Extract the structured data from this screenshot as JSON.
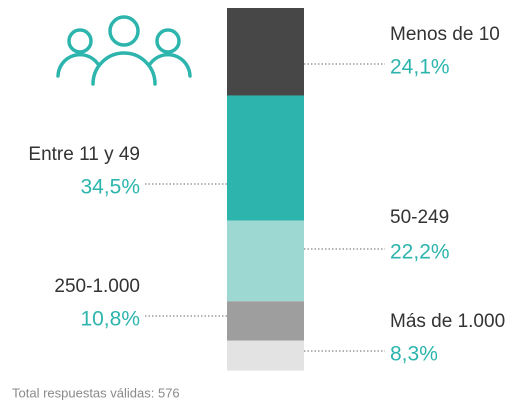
{
  "chart_data": {
    "type": "stacked-column",
    "categories": [
      "Menos de 10",
      "Entre 11 y 49",
      "50-249",
      "250-1.000",
      "Más de 1.000"
    ],
    "values": [
      24.1,
      34.5,
      22.2,
      10.8,
      8.3
    ],
    "value_labels": [
      "24,1%",
      "34,5%",
      "22,2%",
      "10,8%",
      "8,3%"
    ],
    "colors": [
      "#474747",
      "#2db5ad",
      "#9ed8d2",
      "#9e9e9e",
      "#e3e3e3"
    ],
    "note": "Total respuestas válidas: 576"
  }
}
